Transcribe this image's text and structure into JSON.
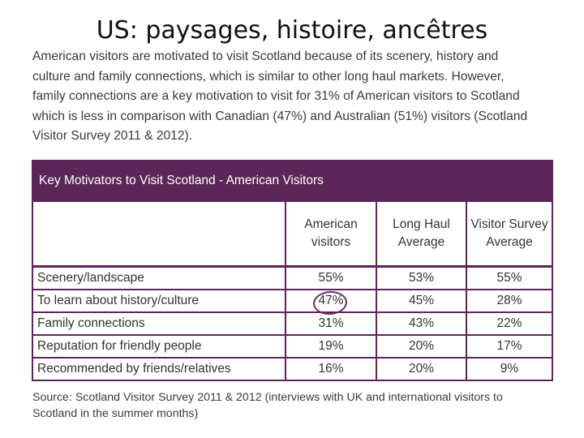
{
  "slide": {
    "title": "US: paysages, histoire, ancêtres"
  },
  "intro": {
    "lines": [
      "American visitors are motivated to visit Scotland because of its scenery, history and",
      "culture and family connections, which is similar to other long haul markets. However,",
      "family connections are a key motivation to visit for 31% of American visitors to Scotland",
      "which is less in comparison with Canadian (47%) and Australian (51%) visitors (Scotland",
      "Visitor Survey 2011 & 2012)."
    ]
  },
  "table": {
    "title": "Key Motivators to Visit Scotland - American Visitors",
    "columns": [
      "American visitors",
      "Long Haul Average",
      "Visitor Survey Average"
    ],
    "rows": [
      {
        "label": "Scenery/landscape",
        "values": [
          "55%",
          "53%",
          "55%"
        ]
      },
      {
        "label": "To learn about history/culture",
        "values": [
          "47%",
          "45%",
          "28%"
        ]
      },
      {
        "label": "Family connections",
        "values": [
          "31%",
          "43%",
          "22%"
        ]
      },
      {
        "label": "Reputation for friendly people",
        "values": [
          "19%",
          "20%",
          "17%"
        ]
      },
      {
        "label": "Recommended by friends/relatives",
        "values": [
          "16%",
          "20%",
          "9%"
        ]
      }
    ],
    "highlight_color": "#6a2d68",
    "header_color": "#5b2758"
  },
  "source": {
    "lines": [
      "Source: Scotland Visitor Survey 2011 & 2012 (interviews with UK and international visitors to",
      "Scotland in the summer months)"
    ]
  }
}
